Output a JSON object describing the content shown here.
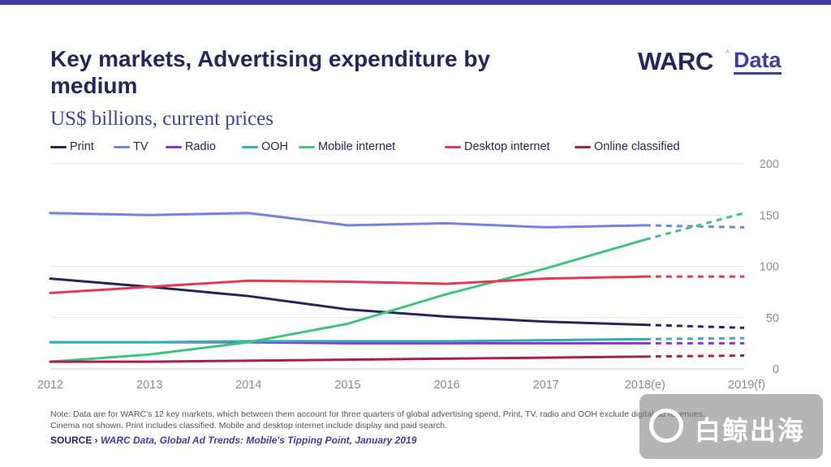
{
  "header": {
    "title": "Key markets, Advertising expenditure by medium",
    "subtitle": "US$ billions, current prices"
  },
  "logo": {
    "primary": "WARC",
    "secondary": "Data",
    "caret": "^"
  },
  "colors": {
    "accent": "#3d3fa0",
    "title": "#26265e"
  },
  "chart_data": {
    "type": "line",
    "title": "Key markets, Advertising expenditure by medium",
    "subtitle": "US$ billions, current prices",
    "xlabel": "",
    "ylabel": "",
    "categories": [
      "2012",
      "2013",
      "2014",
      "2015",
      "2016",
      "2017",
      "2018(e)",
      "2019(f)"
    ],
    "forecast_from_index": 6,
    "ylim": [
      0,
      200
    ],
    "yticks": [
      0,
      50,
      100,
      150,
      200
    ],
    "y_axis_position": "right",
    "grid": true,
    "legend_position": "top",
    "series": [
      {
        "name": "Print",
        "color": "#26265e",
        "values": [
          88,
          80,
          71,
          58,
          51,
          46,
          43,
          40
        ]
      },
      {
        "name": "TV",
        "color": "#6f83e0",
        "values": [
          152,
          150,
          152,
          140,
          142,
          138,
          140,
          138
        ]
      },
      {
        "name": "Radio",
        "color": "#8a32e0",
        "values": [
          26,
          26,
          26,
          25,
          25,
          25,
          25,
          25
        ]
      },
      {
        "name": "OOH",
        "color": "#2fb0b5",
        "values": [
          26,
          26,
          27,
          27,
          27,
          28,
          29,
          30
        ]
      },
      {
        "name": "Mobile internet",
        "color": "#3ec47f",
        "values": [
          7,
          14,
          26,
          44,
          73,
          98,
          126,
          152
        ]
      },
      {
        "name": "Desktop internet",
        "color": "#e8384f",
        "values": [
          74,
          80,
          86,
          85,
          83,
          88,
          90,
          90
        ]
      },
      {
        "name": "Online classified",
        "color": "#a8204e",
        "values": [
          7,
          7,
          8,
          9,
          10,
          11,
          12,
          13
        ]
      }
    ]
  },
  "footer": {
    "note": "Note: Data are for WARC's 12 key markets, which between them account for three quarters of global advertising spend. Print, TV, radio and OOH exclude digital ad revenues. Cinema not shown. Print includes classified. Mobile and desktop internet include display and paid search.",
    "source_label": "SOURCE ›",
    "source_body": "WARC Data, Global Ad Trends: Mobile's Tipping Point, January 2019"
  },
  "watermark": {
    "text": "白鲸出海",
    "icon": "g-circle-icon"
  }
}
